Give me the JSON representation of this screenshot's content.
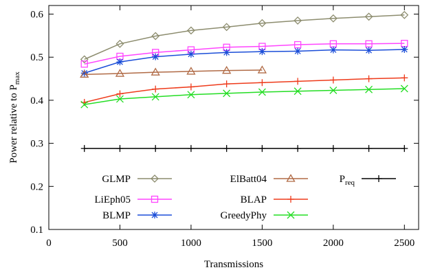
{
  "chart_data": {
    "type": "line",
    "xlabel": "Transmissions",
    "ylabel": "Power relative to P",
    "ylabel_subscript": "max",
    "xlim": [
      0,
      2600
    ],
    "ylim": [
      0.1,
      0.62
    ],
    "xticks": [
      0,
      500,
      1000,
      1500,
      2000,
      2500
    ],
    "yticks": [
      0.1,
      0.2,
      0.3,
      0.4,
      0.5,
      0.6
    ],
    "grid": false,
    "legend_position": "inside-bottom",
    "series": [
      {
        "name": "GLMP",
        "color": "#8c8c6e",
        "marker": "diamond",
        "x": [
          250,
          500,
          750,
          1000,
          1250,
          1500,
          1750,
          2000,
          2250,
          2500
        ],
        "y": [
          0.495,
          0.531,
          0.549,
          0.562,
          0.57,
          0.579,
          0.585,
          0.59,
          0.594,
          0.598
        ]
      },
      {
        "name": "LiEph05",
        "color": "#ff44ff",
        "marker": "square",
        "x": [
          250,
          500,
          750,
          1000,
          1250,
          1500,
          1750,
          2000,
          2250,
          2500
        ],
        "y": [
          0.484,
          0.502,
          0.511,
          0.517,
          0.523,
          0.525,
          0.529,
          0.531,
          0.531,
          0.532
        ]
      },
      {
        "name": "BLMP",
        "color": "#1a4dd8",
        "marker": "star",
        "x": [
          250,
          500,
          750,
          1000,
          1250,
          1500,
          1750,
          2000,
          2250,
          2500
        ],
        "y": [
          0.463,
          0.489,
          0.501,
          0.507,
          0.511,
          0.513,
          0.514,
          0.517,
          0.516,
          0.518
        ]
      },
      {
        "name": "ElBatt04",
        "color": "#b06a45",
        "marker": "triangle",
        "x": [
          250,
          500,
          750,
          1000,
          1250,
          1500
        ],
        "y": [
          0.46,
          0.462,
          0.465,
          0.467,
          0.469,
          0.47
        ]
      },
      {
        "name": "BLAP",
        "color": "#ee3a1a",
        "marker": "plus",
        "x": [
          250,
          500,
          750,
          1000,
          1250,
          1500,
          1750,
          2000,
          2250,
          2500
        ],
        "y": [
          0.395,
          0.415,
          0.426,
          0.431,
          0.438,
          0.441,
          0.444,
          0.447,
          0.45,
          0.452
        ]
      },
      {
        "name": "GreedyPhy",
        "color": "#22dd22",
        "marker": "x",
        "x": [
          250,
          500,
          750,
          1000,
          1250,
          1500,
          1750,
          2000,
          2250,
          2500
        ],
        "y": [
          0.39,
          0.403,
          0.408,
          0.413,
          0.416,
          0.419,
          0.421,
          0.423,
          0.425,
          0.427
        ]
      },
      {
        "name": "P",
        "name_subscript": "req",
        "color": "#000000",
        "marker": "plus",
        "x": [
          250,
          500,
          750,
          1000,
          1250,
          1500,
          1750,
          2000,
          2250,
          2500
        ],
        "y": [
          0.288,
          0.288,
          0.288,
          0.288,
          0.288,
          0.288,
          0.288,
          0.288,
          0.288,
          0.288
        ]
      }
    ]
  }
}
